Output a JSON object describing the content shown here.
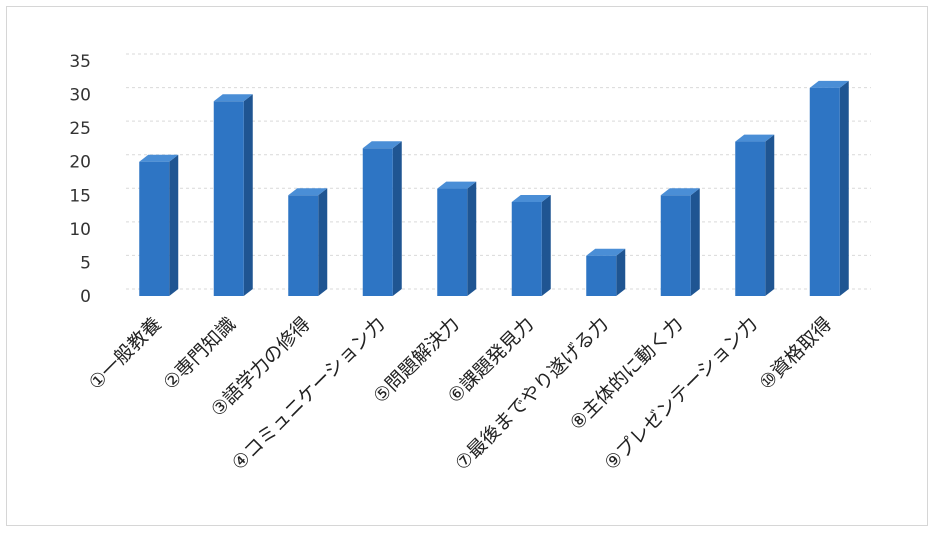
{
  "chart_data": {
    "type": "bar",
    "title": "",
    "xlabel": "",
    "ylabel": "",
    "ylim": [
      0,
      35
    ],
    "yticks": [
      0,
      5,
      10,
      15,
      20,
      25,
      30,
      35
    ],
    "grid": true,
    "style": "3d-column",
    "colors": {
      "bar_front": "#2e75c4",
      "bar_side": "#1f5592",
      "bar_top": "#4a8ed6"
    },
    "categories": [
      "①一般教養",
      "②専門知識",
      "③語学力の修得",
      "④コミュニケーション力",
      "⑤問題解決力",
      "⑥課題発見力",
      "⑦最後までやり遂げる力",
      "⑧主体的に動く力",
      "⑨プレゼンテーション力",
      "⑩資格取得"
    ],
    "values": [
      20,
      29,
      15,
      22,
      16,
      14,
      6,
      15,
      23,
      31
    ]
  }
}
